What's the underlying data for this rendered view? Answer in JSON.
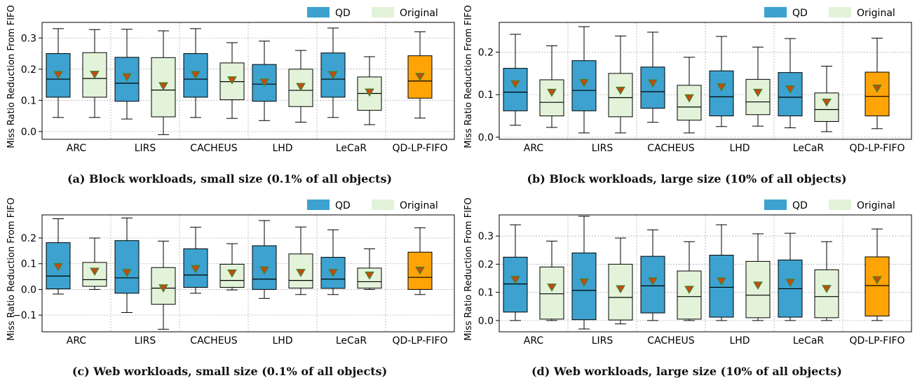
{
  "legend": {
    "qd_label": "QD",
    "original_label": "Original",
    "qd_color": "#3da2cf",
    "original_color": "#e3f3d9",
    "highlight_color": "#ffa406",
    "mean_marker_color": "#c24b10",
    "mean_marker_outline": "#2e8b2e"
  },
  "chart_data": [
    {
      "type": "box",
      "caption": "(a) Block workloads, small size (0.1% of all objects)",
      "ylabel": "Miss Ratio Reduction From FIFO",
      "ylim": [
        -0.025,
        0.35
      ],
      "yticks": [
        "0.0",
        "0.1",
        "0.2",
        "0.3"
      ],
      "categories": [
        "ARC",
        "LIRS",
        "CACHEUS",
        "LHD",
        "LeCaR",
        "QD-LP-FIFO"
      ],
      "series": [
        {
          "name": "QD",
          "boxes": [
            {
              "whislo": 0.045,
              "q1": 0.11,
              "med": 0.168,
              "q3": 0.25,
              "whishi": 0.33,
              "mean": 0.182
            },
            {
              "whislo": 0.04,
              "q1": 0.097,
              "med": 0.155,
              "q3": 0.238,
              "whishi": 0.328,
              "mean": 0.175
            },
            {
              "whislo": 0.045,
              "q1": 0.11,
              "med": 0.168,
              "q3": 0.25,
              "whishi": 0.33,
              "mean": 0.182
            },
            {
              "whislo": 0.035,
              "q1": 0.097,
              "med": 0.152,
              "q3": 0.215,
              "whishi": 0.29,
              "mean": 0.158
            },
            {
              "whislo": 0.045,
              "q1": 0.11,
              "med": 0.168,
              "q3": 0.252,
              "whishi": 0.332,
              "mean": 0.182
            },
            {
              "whislo": 0.043,
              "q1": 0.107,
              "med": 0.162,
              "q3": 0.243,
              "whishi": 0.32,
              "mean": 0.176
            }
          ]
        },
        {
          "name": "Original",
          "boxes": [
            {
              "whislo": 0.045,
              "q1": 0.11,
              "med": 0.17,
              "q3": 0.253,
              "whishi": 0.327,
              "mean": 0.183
            },
            {
              "whislo": -0.01,
              "q1": 0.047,
              "med": 0.133,
              "q3": 0.237,
              "whishi": 0.323,
              "mean": 0.146
            },
            {
              "whislo": 0.042,
              "q1": 0.102,
              "med": 0.16,
              "q3": 0.22,
              "whishi": 0.285,
              "mean": 0.165
            },
            {
              "whislo": 0.03,
              "q1": 0.08,
              "med": 0.132,
              "q3": 0.2,
              "whishi": 0.26,
              "mean": 0.144
            },
            {
              "whislo": 0.022,
              "q1": 0.068,
              "med": 0.122,
              "q3": 0.175,
              "whishi": 0.24,
              "mean": 0.126
            }
          ]
        }
      ]
    },
    {
      "type": "box",
      "caption": "(b) Block workloads, large size (10% of all objects)",
      "ylabel": "Miss Ratio Reduction From FIFO",
      "ylim": [
        -0.005,
        0.27
      ],
      "yticks": [
        "0.0",
        "0.1",
        "0.2"
      ],
      "categories": [
        "ARC",
        "LIRS",
        "CACHEUS",
        "LHD",
        "LeCaR",
        "QD-LP-FIFO"
      ],
      "series": [
        {
          "name": "QD",
          "boxes": [
            {
              "whislo": 0.028,
              "q1": 0.062,
              "med": 0.106,
              "q3": 0.162,
              "whishi": 0.242,
              "mean": 0.125
            },
            {
              "whislo": 0.01,
              "q1": 0.062,
              "med": 0.11,
              "q3": 0.18,
              "whishi": 0.26,
              "mean": 0.128
            },
            {
              "whislo": 0.035,
              "q1": 0.068,
              "med": 0.107,
              "q3": 0.165,
              "whishi": 0.247,
              "mean": 0.127
            },
            {
              "whislo": 0.025,
              "q1": 0.05,
              "med": 0.095,
              "q3": 0.156,
              "whishi": 0.237,
              "mean": 0.118
            },
            {
              "whislo": 0.022,
              "q1": 0.05,
              "med": 0.094,
              "q3": 0.152,
              "whishi": 0.232,
              "mean": 0.113
            },
            {
              "whislo": 0.02,
              "q1": 0.05,
              "med": 0.096,
              "q3": 0.153,
              "whishi": 0.233,
              "mean": 0.115
            }
          ]
        },
        {
          "name": "Original",
          "boxes": [
            {
              "whislo": 0.023,
              "q1": 0.05,
              "med": 0.082,
              "q3": 0.135,
              "whishi": 0.215,
              "mean": 0.105
            },
            {
              "whislo": 0.01,
              "q1": 0.048,
              "med": 0.093,
              "q3": 0.15,
              "whishi": 0.238,
              "mean": 0.11
            },
            {
              "whislo": 0.01,
              "q1": 0.04,
              "med": 0.071,
              "q3": 0.122,
              "whishi": 0.188,
              "mean": 0.092
            },
            {
              "whislo": 0.026,
              "q1": 0.053,
              "med": 0.083,
              "q3": 0.136,
              "whishi": 0.212,
              "mean": 0.105
            },
            {
              "whislo": 0.013,
              "q1": 0.037,
              "med": 0.065,
              "q3": 0.104,
              "whishi": 0.167,
              "mean": 0.082
            }
          ]
        }
      ]
    },
    {
      "type": "box",
      "caption": "(c) Web workloads, small size (0.1% of all objects)",
      "ylabel": "Miss Ratio Reduction From FIFO",
      "ylim": [
        -0.165,
        0.29
      ],
      "yticks": [
        "−0.1",
        "0.0",
        "0.1",
        "0.2"
      ],
      "categories": [
        "ARC",
        "LIRS",
        "CACHEUS",
        "LHD",
        "LeCaR",
        "QD-LP-FIFO"
      ],
      "series": [
        {
          "name": "QD",
          "boxes": [
            {
              "whislo": -0.018,
              "q1": 0.002,
              "med": 0.052,
              "q3": 0.182,
              "whishi": 0.275,
              "mean": 0.088
            },
            {
              "whislo": -0.09,
              "q1": -0.015,
              "med": 0.045,
              "q3": 0.19,
              "whishi": 0.278,
              "mean": 0.065
            },
            {
              "whislo": -0.015,
              "q1": 0.008,
              "med": 0.056,
              "q3": 0.158,
              "whishi": 0.242,
              "mean": 0.08
            },
            {
              "whislo": -0.035,
              "q1": 0.0,
              "med": 0.04,
              "q3": 0.17,
              "whishi": 0.268,
              "mean": 0.075
            },
            {
              "whislo": -0.02,
              "q1": 0.004,
              "med": 0.04,
              "q3": 0.125,
              "whishi": 0.232,
              "mean": 0.065
            },
            {
              "whislo": -0.02,
              "q1": 0.0,
              "med": 0.047,
              "q3": 0.145,
              "whishi": 0.24,
              "mean": 0.074
            }
          ]
        },
        {
          "name": "Original",
          "boxes": [
            {
              "whislo": 0.0,
              "q1": 0.012,
              "med": 0.038,
              "q3": 0.105,
              "whishi": 0.2,
              "mean": 0.07
            },
            {
              "whislo": -0.155,
              "q1": -0.058,
              "med": 0.005,
              "q3": 0.085,
              "whishi": 0.188,
              "mean": 0.005
            },
            {
              "whislo": -0.002,
              "q1": 0.008,
              "med": 0.035,
              "q3": 0.098,
              "whishi": 0.178,
              "mean": 0.063
            },
            {
              "whislo": -0.02,
              "q1": 0.005,
              "med": 0.035,
              "q3": 0.138,
              "whishi": 0.243,
              "mean": 0.065
            },
            {
              "whislo": 0.0,
              "q1": 0.005,
              "med": 0.03,
              "q3": 0.083,
              "whishi": 0.158,
              "mean": 0.055
            }
          ]
        }
      ]
    },
    {
      "type": "box",
      "caption": "(d) Web workloads, large size (10% of all objects)",
      "ylabel": "Miss Ratio Reduction From FIFO",
      "ylim": [
        -0.04,
        0.375
      ],
      "yticks": [
        "0.0",
        "0.1",
        "0.2",
        "0.3"
      ],
      "categories": [
        "ARC",
        "LIRS",
        "CACHEUS",
        "LHD",
        "LeCaR",
        "QD-LP-FIFO"
      ],
      "series": [
        {
          "name": "QD",
          "boxes": [
            {
              "whislo": 0.0,
              "q1": 0.03,
              "med": 0.13,
              "q3": 0.225,
              "whishi": 0.34,
              "mean": 0.145
            },
            {
              "whislo": -0.03,
              "q1": 0.003,
              "med": 0.107,
              "q3": 0.24,
              "whishi": 0.37,
              "mean": 0.136
            },
            {
              "whislo": 0.0,
              "q1": 0.027,
              "med": 0.123,
              "q3": 0.228,
              "whishi": 0.322,
              "mean": 0.14
            },
            {
              "whislo": 0.0,
              "q1": 0.012,
              "med": 0.118,
              "q3": 0.232,
              "whishi": 0.34,
              "mean": 0.14
            },
            {
              "whislo": 0.0,
              "q1": 0.012,
              "med": 0.113,
              "q3": 0.215,
              "whishi": 0.31,
              "mean": 0.135
            },
            {
              "whislo": 0.0,
              "q1": 0.016,
              "med": 0.124,
              "q3": 0.226,
              "whishi": 0.325,
              "mean": 0.144
            }
          ]
        },
        {
          "name": "Original",
          "boxes": [
            {
              "whislo": 0.0,
              "q1": 0.005,
              "med": 0.095,
              "q3": 0.19,
              "whishi": 0.282,
              "mean": 0.118
            },
            {
              "whislo": -0.012,
              "q1": 0.002,
              "med": 0.082,
              "q3": 0.2,
              "whishi": 0.293,
              "mean": 0.112
            },
            {
              "whislo": 0.0,
              "q1": 0.005,
              "med": 0.085,
              "q3": 0.176,
              "whishi": 0.28,
              "mean": 0.11
            },
            {
              "whislo": 0.0,
              "q1": 0.01,
              "med": 0.09,
              "q3": 0.21,
              "whishi": 0.308,
              "mean": 0.125
            },
            {
              "whislo": 0.0,
              "q1": 0.01,
              "med": 0.085,
              "q3": 0.18,
              "whishi": 0.28,
              "mean": 0.113
            }
          ]
        }
      ]
    }
  ]
}
